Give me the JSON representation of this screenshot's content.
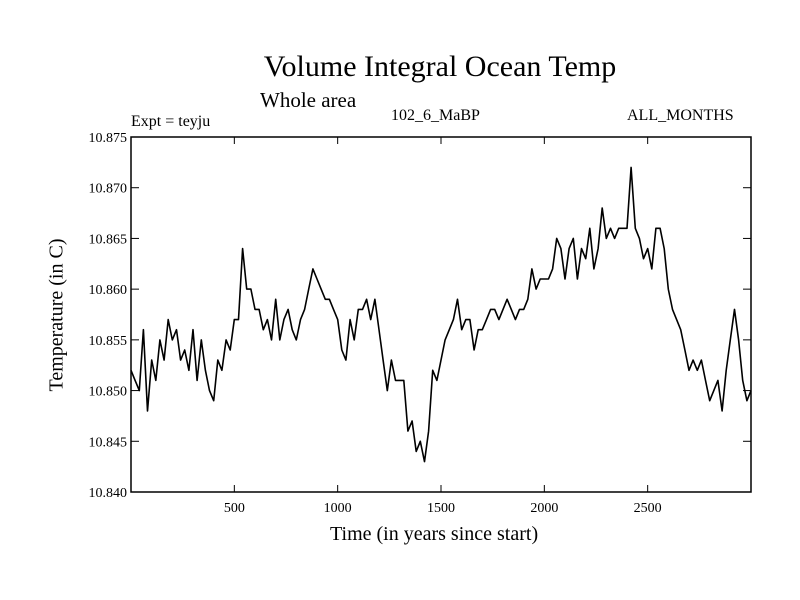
{
  "chart_data": {
    "type": "line",
    "title": "Volume Integral Ocean Temp",
    "subtitle": "Whole area",
    "annotations": {
      "experiment": "Expt = teyju",
      "experiment_id": "102_6_MaBP",
      "months": "ALL_MONTHS"
    },
    "xlabel": "Time (in years since start)",
    "ylabel": "Temperature (in C)",
    "xlim": [
      0,
      3000
    ],
    "ylim": [
      10.84,
      10.875
    ],
    "xticks": [
      500,
      1000,
      1500,
      2000,
      2500
    ],
    "xtick_labels": [
      "500",
      "1000",
      "1500",
      "2000",
      "2500"
    ],
    "yticks": [
      10.84,
      10.845,
      10.85,
      10.855,
      10.86,
      10.865,
      10.87,
      10.875
    ],
    "ytick_labels": [
      "10.840",
      "10.845",
      "10.850",
      "10.855",
      "10.860",
      "10.865",
      "10.870",
      "10.875"
    ],
    "grid": false,
    "line_color": "#000000",
    "series": [
      {
        "name": "Volume Integral Ocean Temp",
        "x": [
          0,
          20,
          40,
          60,
          80,
          100,
          120,
          140,
          160,
          180,
          200,
          220,
          240,
          260,
          280,
          300,
          320,
          340,
          360,
          380,
          400,
          420,
          440,
          460,
          480,
          500,
          520,
          540,
          560,
          580,
          600,
          620,
          640,
          660,
          680,
          700,
          720,
          740,
          760,
          780,
          800,
          820,
          840,
          860,
          880,
          900,
          920,
          940,
          960,
          980,
          1000,
          1020,
          1040,
          1060,
          1080,
          1100,
          1120,
          1140,
          1160,
          1180,
          1200,
          1220,
          1240,
          1260,
          1280,
          1300,
          1320,
          1340,
          1360,
          1380,
          1400,
          1420,
          1440,
          1460,
          1480,
          1500,
          1520,
          1540,
          1560,
          1580,
          1600,
          1620,
          1640,
          1660,
          1680,
          1700,
          1720,
          1740,
          1760,
          1780,
          1800,
          1820,
          1840,
          1860,
          1880,
          1900,
          1920,
          1940,
          1960,
          1980,
          2000,
          2020,
          2040,
          2060,
          2080,
          2100,
          2120,
          2140,
          2160,
          2180,
          2200,
          2220,
          2240,
          2260,
          2280,
          2300,
          2320,
          2340,
          2360,
          2380,
          2400,
          2420,
          2440,
          2460,
          2480,
          2500,
          2520,
          2540,
          2560,
          2580,
          2600,
          2620,
          2640,
          2660,
          2680,
          2700,
          2720,
          2740,
          2760,
          2780,
          2800,
          2820,
          2840,
          2860,
          2880,
          2900,
          2920,
          2940,
          2960,
          2980,
          3000
        ],
        "y": [
          10.852,
          10.851,
          10.85,
          10.856,
          10.848,
          10.853,
          10.851,
          10.855,
          10.853,
          10.857,
          10.855,
          10.856,
          10.853,
          10.854,
          10.852,
          10.856,
          10.851,
          10.855,
          10.852,
          10.85,
          10.849,
          10.853,
          10.852,
          10.855,
          10.854,
          10.857,
          10.857,
          10.864,
          10.86,
          10.86,
          10.858,
          10.858,
          10.856,
          10.857,
          10.855,
          10.859,
          10.855,
          10.857,
          10.858,
          10.856,
          10.855,
          10.857,
          10.858,
          10.86,
          10.862,
          10.861,
          10.86,
          10.859,
          10.859,
          10.858,
          10.857,
          10.854,
          10.853,
          10.857,
          10.855,
          10.858,
          10.858,
          10.859,
          10.857,
          10.859,
          10.856,
          10.853,
          10.85,
          10.853,
          10.851,
          10.851,
          10.851,
          10.846,
          10.847,
          10.844,
          10.845,
          10.843,
          10.846,
          10.852,
          10.851,
          10.853,
          10.855,
          10.856,
          10.857,
          10.859,
          10.856,
          10.857,
          10.857,
          10.854,
          10.856,
          10.856,
          10.857,
          10.858,
          10.858,
          10.857,
          10.858,
          10.859,
          10.858,
          10.857,
          10.858,
          10.858,
          10.859,
          10.862,
          10.86,
          10.861,
          10.861,
          10.861,
          10.862,
          10.865,
          10.864,
          10.861,
          10.864,
          10.865,
          10.861,
          10.864,
          10.863,
          10.866,
          10.862,
          10.864,
          10.868,
          10.865,
          10.866,
          10.865,
          10.866,
          10.866,
          10.866,
          10.872,
          10.866,
          10.865,
          10.863,
          10.864,
          10.862,
          10.866,
          10.866,
          10.864,
          10.86,
          10.858,
          10.857,
          10.856,
          10.854,
          10.852,
          10.853,
          10.852,
          10.853,
          10.851,
          10.849,
          10.85,
          10.851,
          10.848,
          10.852,
          10.855,
          10.858,
          10.855,
          10.851,
          10.849,
          10.85
        ]
      }
    ]
  }
}
